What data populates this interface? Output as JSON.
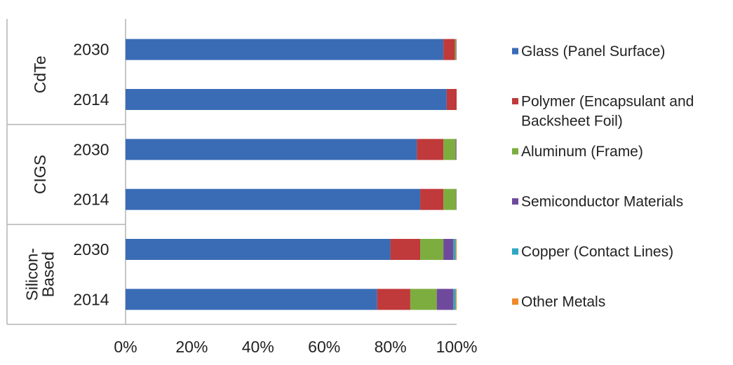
{
  "chart_data": {
    "type": "bar",
    "orientation": "horizontal",
    "stacked": "percent",
    "categories": [
      {
        "group": "CdTe",
        "year": "2030"
      },
      {
        "group": "CdTe",
        "year": "2014"
      },
      {
        "group": "CIGS",
        "year": "2030"
      },
      {
        "group": "CIGS",
        "year": "2014"
      },
      {
        "group": "Silicon-Based",
        "year": "2030"
      },
      {
        "group": "Silicon-Based",
        "year": "2014"
      }
    ],
    "groups": [
      {
        "label": "CdTe",
        "lines": [
          "CdTe"
        ]
      },
      {
        "label": "CIGS",
        "lines": [
          "CIGS"
        ]
      },
      {
        "label": "Silicon-Based",
        "lines": [
          "Silicon-",
          "Based"
        ]
      }
    ],
    "series": [
      {
        "name": "Glass (Panel Surface)",
        "name_lines": [
          "Glass (Panel Surface)"
        ],
        "color": "#3a6bb5",
        "values": [
          96,
          97,
          88,
          89,
          80,
          76
        ]
      },
      {
        "name": "Polymer (Encapsulant and Backsheet Foil)",
        "name_lines": [
          "Polymer (Encapsulant and",
          "Backsheet Foil)"
        ],
        "color": "#c0393b",
        "values": [
          3.5,
          3,
          8,
          7,
          9,
          10
        ]
      },
      {
        "name": "Aluminum (Frame)",
        "name_lines": [
          "Aluminum (Frame)"
        ],
        "color": "#7dad3f",
        "values": [
          0.3,
          0,
          3.7,
          3.8,
          7,
          8
        ]
      },
      {
        "name": "Semiconductor Materials",
        "name_lines": [
          "Semiconductor Materials"
        ],
        "color": "#6f4a9c",
        "values": [
          0.1,
          0,
          0.2,
          0.1,
          3,
          5
        ]
      },
      {
        "name": "Copper (Contact Lines)",
        "name_lines": [
          "Copper (Contact Lines)"
        ],
        "color": "#2ea6c3",
        "values": [
          0.05,
          0,
          0.05,
          0.05,
          0.7,
          0.7
        ]
      },
      {
        "name": "Other Metals",
        "name_lines": [
          "Other Metals"
        ],
        "color": "#ef8a2c",
        "values": [
          0.05,
          0,
          0.05,
          0.05,
          0.3,
          0.3
        ]
      }
    ],
    "x_ticks": [
      "0%",
      "20%",
      "40%",
      "60%",
      "80%",
      "100%"
    ],
    "xlim": [
      0,
      100
    ],
    "grid": false,
    "legend_position": "right",
    "title": "",
    "xlabel": "",
    "ylabel": ""
  }
}
